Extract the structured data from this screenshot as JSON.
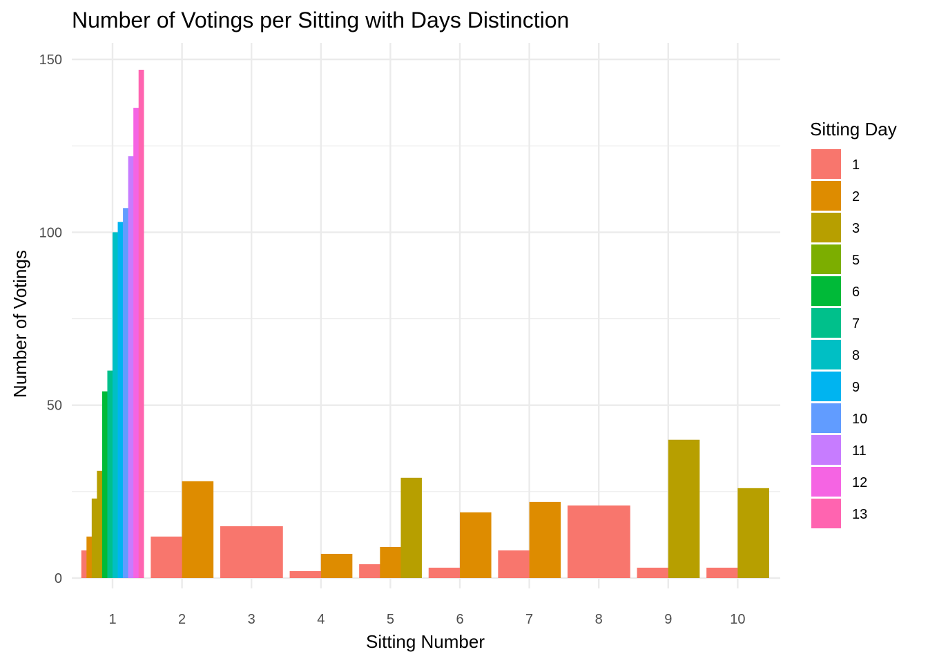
{
  "chart_data": {
    "type": "bar",
    "title": "Number of Votings per Sitting with Days Distinction",
    "xlabel": "Sitting Number",
    "ylabel": "Number of Votings",
    "x_categories": [
      "1",
      "2",
      "3",
      "4",
      "5",
      "6",
      "7",
      "8",
      "9",
      "10"
    ],
    "ylim": [
      0,
      150
    ],
    "y_ticks": [
      0,
      50,
      100,
      150
    ],
    "grid": true,
    "legend": {
      "title": "Sitting Day",
      "position": "right",
      "entries": [
        {
          "label": "1",
          "color": "#F8766D"
        },
        {
          "label": "2",
          "color": "#DE8C00"
        },
        {
          "label": "3",
          "color": "#B79F00"
        },
        {
          "label": "5",
          "color": "#7CAE00"
        },
        {
          "label": "6",
          "color": "#00BA38"
        },
        {
          "label": "7",
          "color": "#00C08B"
        },
        {
          "label": "8",
          "color": "#00BFC4"
        },
        {
          "label": "9",
          "color": "#00B4F0"
        },
        {
          "label": "10",
          "color": "#619CFF"
        },
        {
          "label": "11",
          "color": "#C77CFF"
        },
        {
          "label": "12",
          "color": "#F564E3"
        },
        {
          "label": "13",
          "color": "#FF64B0"
        }
      ]
    },
    "bars": [
      {
        "sitting": "1",
        "day": "1",
        "value": 8
      },
      {
        "sitting": "1",
        "day": "2",
        "value": 12
      },
      {
        "sitting": "1",
        "day": "3",
        "value": 23
      },
      {
        "sitting": "1",
        "day": "3",
        "value": 31
      },
      {
        "sitting": "1",
        "day": "6",
        "value": 54
      },
      {
        "sitting": "1",
        "day": "7",
        "value": 60
      },
      {
        "sitting": "1",
        "day": "8",
        "value": 100
      },
      {
        "sitting": "1",
        "day": "9",
        "value": 103
      },
      {
        "sitting": "1",
        "day": "10",
        "value": 107
      },
      {
        "sitting": "1",
        "day": "11",
        "value": 122
      },
      {
        "sitting": "1",
        "day": "12",
        "value": 136
      },
      {
        "sitting": "1",
        "day": "13",
        "value": 147
      },
      {
        "sitting": "2",
        "day": "1",
        "value": 12
      },
      {
        "sitting": "2",
        "day": "2",
        "value": 28
      },
      {
        "sitting": "3",
        "day": "1",
        "value": 15
      },
      {
        "sitting": "4",
        "day": "1",
        "value": 2
      },
      {
        "sitting": "4",
        "day": "2",
        "value": 7
      },
      {
        "sitting": "5",
        "day": "1",
        "value": 4
      },
      {
        "sitting": "5",
        "day": "2",
        "value": 9
      },
      {
        "sitting": "5",
        "day": "3",
        "value": 29
      },
      {
        "sitting": "6",
        "day": "1",
        "value": 3
      },
      {
        "sitting": "6",
        "day": "2",
        "value": 19
      },
      {
        "sitting": "7",
        "day": "1",
        "value": 8
      },
      {
        "sitting": "7",
        "day": "2",
        "value": 22
      },
      {
        "sitting": "8",
        "day": "1",
        "value": 21
      },
      {
        "sitting": "9",
        "day": "1",
        "value": 3
      },
      {
        "sitting": "9",
        "day": "3",
        "value": 40
      },
      {
        "sitting": "10",
        "day": "1",
        "value": 3
      },
      {
        "sitting": "10",
        "day": "3",
        "value": 26
      }
    ]
  }
}
